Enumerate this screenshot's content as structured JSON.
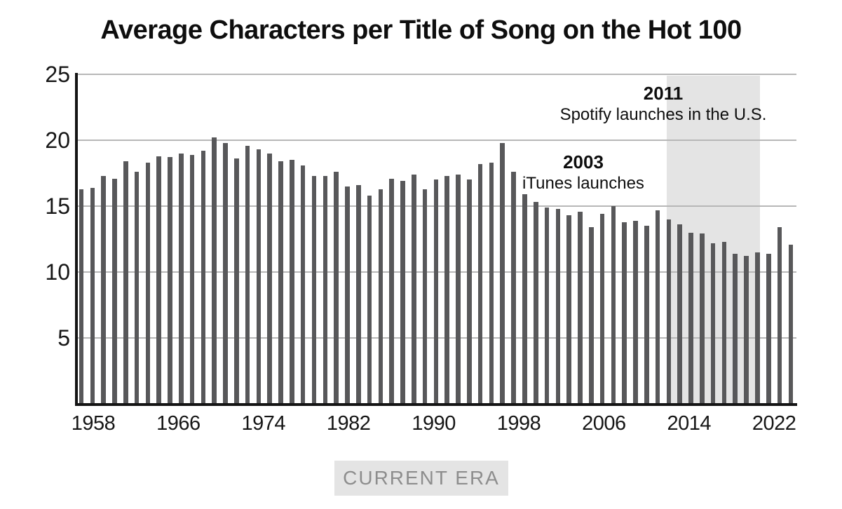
{
  "page": {
    "background": "#ffffff"
  },
  "chart_data": {
    "type": "bar",
    "title": "Average Characters per Title of Song on the Hot 100",
    "xlabel": "",
    "ylabel": "",
    "ylim": [
      0,
      25
    ],
    "yticks": [
      5,
      10,
      15,
      20,
      25
    ],
    "xtick_labels": [
      "1958",
      "1966",
      "1974",
      "1982",
      "1990",
      "1998",
      "2006",
      "2014",
      "2022"
    ],
    "grid": "horizontal",
    "legend_position": "none",
    "bar_color": "#58585a",
    "gridline_color": "#b7b7b7",
    "axis_color": "#141414",
    "categories": [
      1958,
      1959,
      1960,
      1961,
      1962,
      1963,
      1964,
      1965,
      1966,
      1967,
      1968,
      1969,
      1970,
      1971,
      1972,
      1973,
      1974,
      1975,
      1976,
      1977,
      1978,
      1979,
      1980,
      1981,
      1982,
      1983,
      1984,
      1985,
      1986,
      1987,
      1988,
      1989,
      1990,
      1991,
      1992,
      1993,
      1994,
      1995,
      1996,
      1997,
      1998,
      1999,
      2000,
      2001,
      2002,
      2003,
      2004,
      2005,
      2006,
      2007,
      2008,
      2009,
      2010,
      2011,
      2012,
      2013,
      2014,
      2015,
      2016,
      2017,
      2018,
      2019,
      2020,
      2021,
      2022
    ],
    "values": [
      16.3,
      16.4,
      17.3,
      17.1,
      18.4,
      17.6,
      18.3,
      18.8,
      18.7,
      19.0,
      18.9,
      19.2,
      20.2,
      19.8,
      18.6,
      19.6,
      19.3,
      19.0,
      18.4,
      18.5,
      18.1,
      17.3,
      17.3,
      17.6,
      16.5,
      16.6,
      15.8,
      16.3,
      17.1,
      16.9,
      17.4,
      16.3,
      17.0,
      17.3,
      17.4,
      17.0,
      18.2,
      18.3,
      19.8,
      17.6,
      15.9,
      15.3,
      14.9,
      14.8,
      14.3,
      14.6,
      13.4,
      14.4,
      15.0,
      13.8,
      13.9,
      13.5,
      14.7,
      14.0,
      13.6,
      13.0,
      12.9,
      12.2,
      12.3,
      11.4,
      11.2,
      11.5,
      11.4,
      13.4,
      12.1
    ],
    "era_band": {
      "start_year": 2011,
      "end_year": 2019,
      "color": "#e4e4e4"
    },
    "annotations": [
      {
        "year": "2011",
        "text": "Spotify launches in the U.S."
      },
      {
        "year": "2003",
        "text": "iTunes launches"
      }
    ],
    "footer_badge": {
      "label": "CURRENT ERA",
      "text_color": "#8d8d8d",
      "background": "#e4e4e4"
    }
  }
}
